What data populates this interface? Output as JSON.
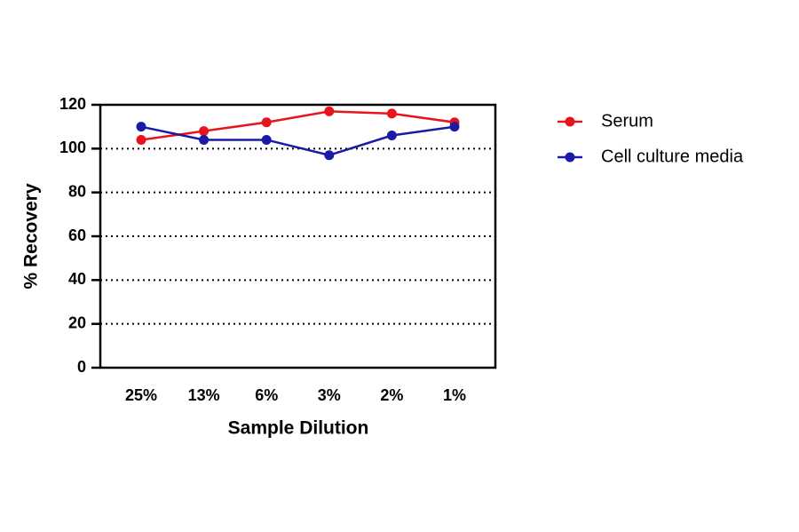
{
  "chart_data": {
    "type": "line",
    "x_label": "Sample Dilution",
    "y_label": "% Recovery",
    "categories": [
      "25%",
      "13%",
      "6%",
      "3%",
      "2%",
      "1%"
    ],
    "series": [
      {
        "name": "Serum",
        "color": "#e8141b",
        "values": [
          104,
          108,
          112,
          117,
          116,
          112
        ]
      },
      {
        "name": "Cell culture media",
        "color": "#1a1aa6",
        "values": [
          110,
          104,
          104,
          97,
          106,
          110
        ]
      }
    ],
    "ylim": [
      0,
      120
    ],
    "yticks": [
      0,
      20,
      40,
      60,
      80,
      100,
      120
    ],
    "grid": true,
    "legend": "right"
  }
}
